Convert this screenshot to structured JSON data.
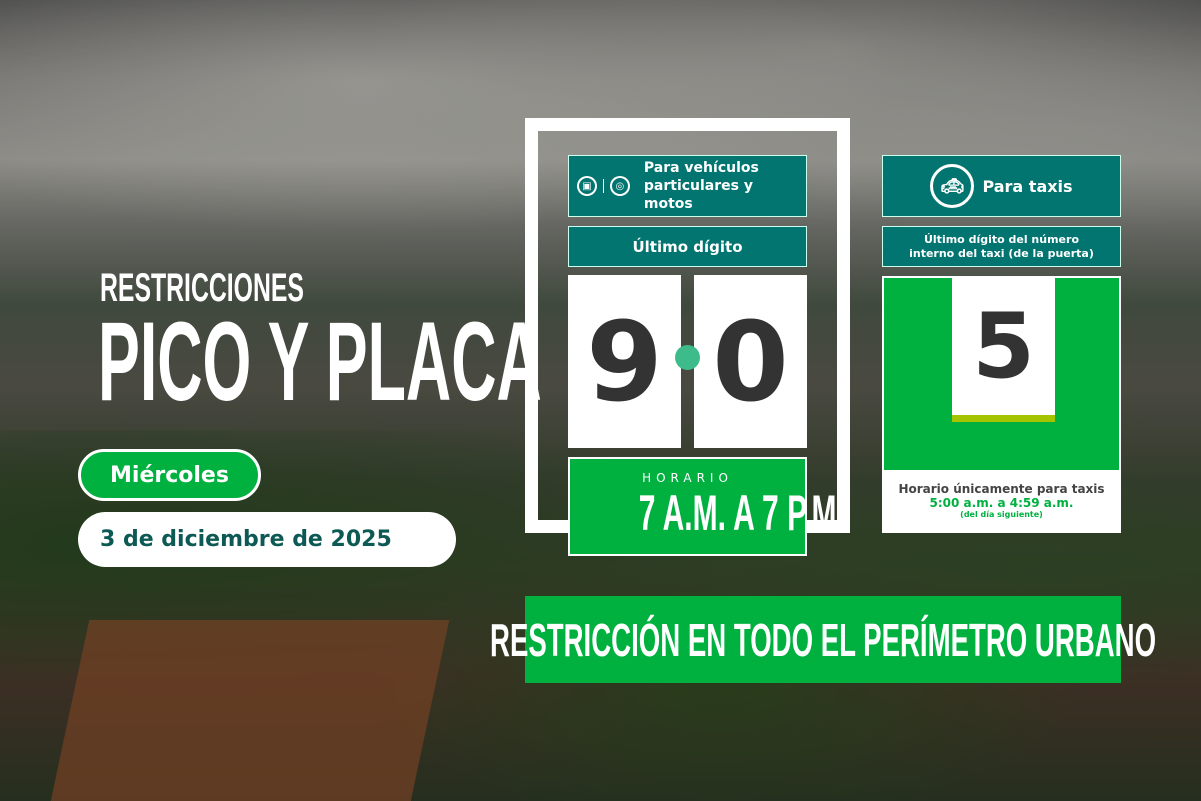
{
  "title": {
    "line1": "RESTRICCIONES",
    "line2": "PICO Y PLACA"
  },
  "day": "Miércoles",
  "date": "3 de diciembre de 2025",
  "private": {
    "header": "Para vehículos particulares y motos",
    "header_l1": "Para vehículos",
    "header_l2": "particulares y motos",
    "icons": [
      "car-icon",
      "motorcycle-icon"
    ],
    "subheader": "Último dígito",
    "digits": [
      "9",
      "0"
    ],
    "schedule_label": "HORARIO",
    "schedule": "7 A.M. A 7 P.M."
  },
  "taxi": {
    "header": "Para taxis",
    "icon": "taxi-icon",
    "subheader_l1": "Último dígito del número",
    "subheader_l2": "interno del taxi (de la puerta)",
    "digit": "5",
    "schedule_label": "Horario únicamente para taxis",
    "schedule": "5:00 a.m. a 4:59 a.m.",
    "schedule_note": "(del día siguiente)"
  },
  "banner": "RESTRICCIÓN EN TODO EL PERÍMETRO URBANO",
  "colors": {
    "green": "#00b140",
    "teal": "#037571",
    "lime": "#a4c400",
    "dark": "#333333"
  }
}
